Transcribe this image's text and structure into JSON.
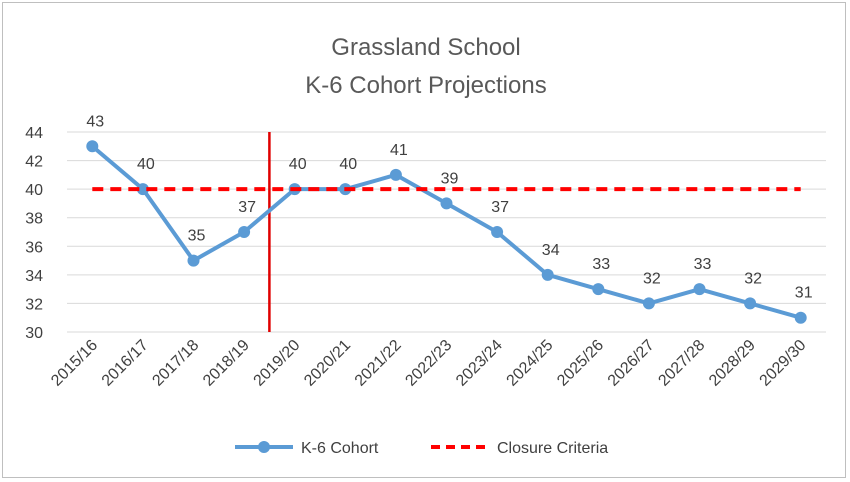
{
  "chart_data": {
    "type": "line",
    "title": "Grassland School",
    "subtitle": "K-6 Cohort Projections",
    "categories": [
      "2015/16",
      "2016/17",
      "2017/18",
      "2018/19",
      "2019/20",
      "2020/21",
      "2021/22",
      "2022/23",
      "2023/24",
      "2024/25",
      "2025/26",
      "2026/27",
      "2027/28",
      "2028/29",
      "2029/30"
    ],
    "series": [
      {
        "name": "K-6 Cohort",
        "values": [
          43,
          40,
          35,
          37,
          40,
          40,
          41,
          39,
          37,
          34,
          33,
          32,
          33,
          32,
          31
        ],
        "color": "#5b9bd5",
        "style": "solid-with-markers",
        "data_labels": true
      },
      {
        "name": "Closure Criteria",
        "values": [
          40,
          40,
          40,
          40,
          40,
          40,
          40,
          40,
          40,
          40,
          40,
          40,
          40,
          40,
          40
        ],
        "color": "#ff0000",
        "style": "dashed"
      }
    ],
    "reference_line": {
      "type": "vertical",
      "at_category": "2019/20",
      "position": "between 2018/19 and 2019/20",
      "color": "#e00000"
    },
    "ylim": [
      30,
      44
    ],
    "yticks": [
      30,
      32,
      34,
      36,
      38,
      40,
      42,
      44
    ],
    "grid": "horizontal",
    "legend": "bottom-center",
    "xlabel": "",
    "ylabel": ""
  }
}
